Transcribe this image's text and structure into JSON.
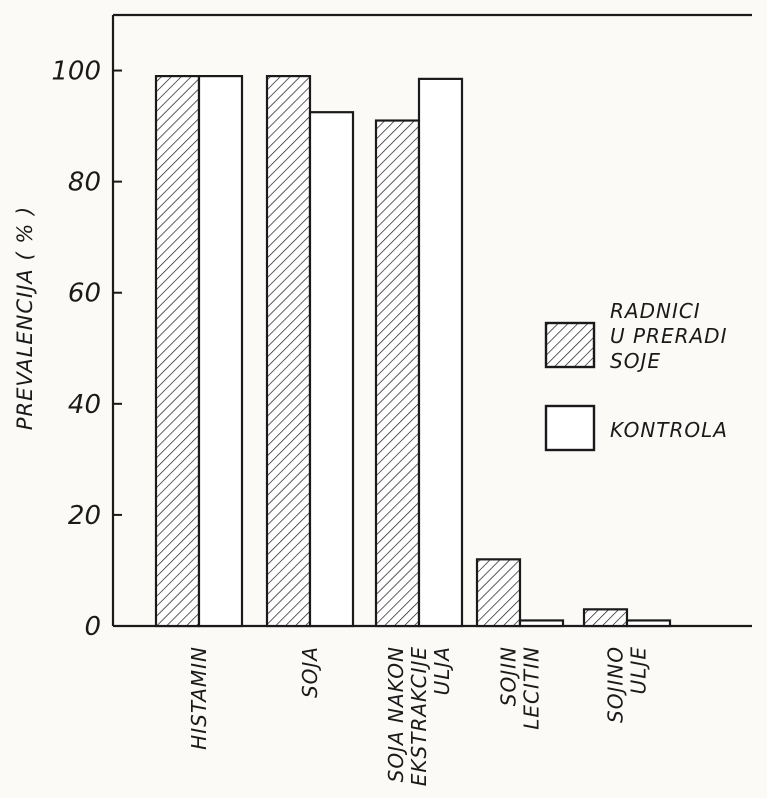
{
  "chart_data": {
    "type": "bar",
    "ylabel": "PREVALENCIJA ( % )",
    "xlabel": "",
    "ylim": [
      0,
      110
    ],
    "yticks": [
      0,
      20,
      40,
      60,
      80,
      100
    ],
    "ytick_labels": [
      "0",
      "20",
      "40",
      "60",
      "80",
      "100"
    ],
    "grid": false,
    "legend_position": "right",
    "categories": [
      [
        "HISTAMIN"
      ],
      [
        "SOJA"
      ],
      [
        "SOJA NAKON",
        "EKSTRAKCIJE",
        "ULJA"
      ],
      [
        "SOJIN",
        "LECITIN"
      ],
      [
        "SOJINO",
        "ULJE"
      ]
    ],
    "series": [
      {
        "name": [
          "RADNICI",
          "U PRERADI",
          "SOJE"
        ],
        "pattern": "hatched",
        "values": [
          99,
          99,
          91,
          12,
          3
        ]
      },
      {
        "name": [
          "KONTROLA"
        ],
        "pattern": "open",
        "values": [
          99,
          92.5,
          98.5,
          1,
          1
        ]
      }
    ],
    "colors": {
      "stroke": "#1a1a1a",
      "fill_open": "#ffffff"
    }
  }
}
